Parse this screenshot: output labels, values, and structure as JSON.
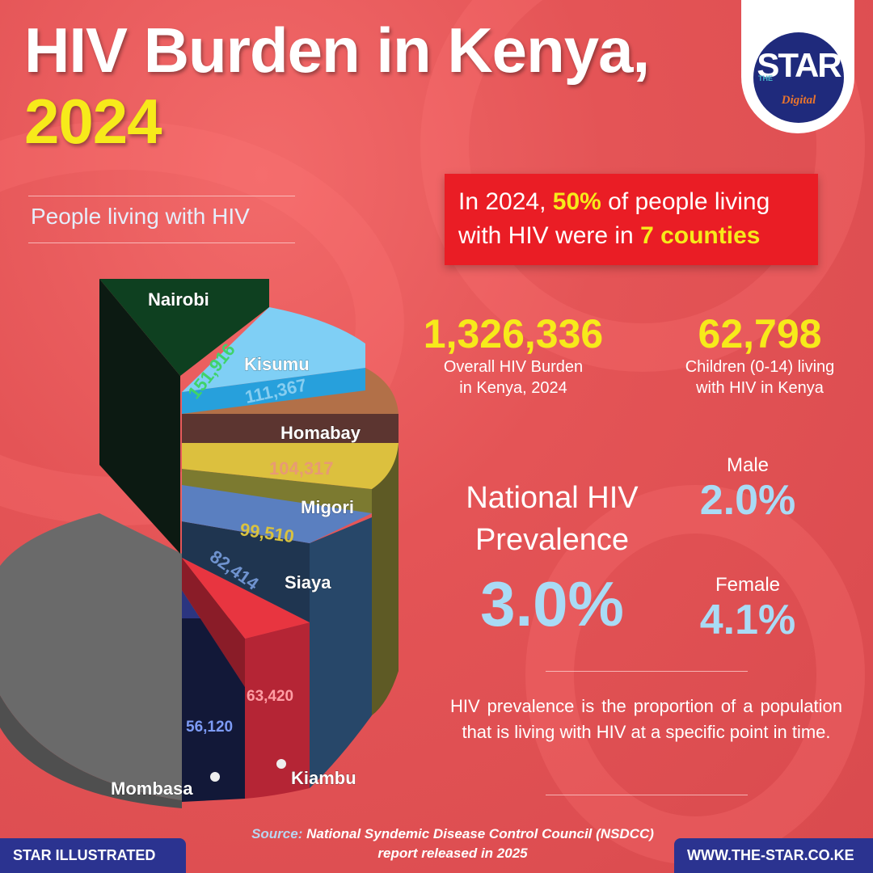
{
  "header": {
    "title_line1": "HIV Burden in Kenya,",
    "title_line2": "2024"
  },
  "logo": {
    "the": "THE",
    "star": "STAR",
    "digital": "Digital"
  },
  "subtitle": "People living with HIV",
  "callout": {
    "pre": "In 2024, ",
    "pct": "50%",
    "mid": " of people living with HIV were in ",
    "counties": "7 counties"
  },
  "stats": [
    {
      "value": "1,326,336",
      "label_line1": "Overall HIV Burden",
      "label_line2": "in Kenya, 2024"
    },
    {
      "value": "62,798",
      "label_line1": "Children (0-14) living",
      "label_line2": "with HIV in Kenya"
    }
  ],
  "prevalence": {
    "label_line1": "National HIV",
    "label_line2": "Prevalence",
    "value": "3.0%",
    "male_label": "Male",
    "male_value": "2.0%",
    "female_label": "Female",
    "female_value": "4.1%"
  },
  "definition": "HIV prevalence is the proportion of a population that is living with HIV at a specific point in time.",
  "source": {
    "label": "Source:",
    "text": "National Syndemic Disease Control Council (NSDCC) report released in 2025"
  },
  "footer": {
    "left": "STAR ILLUSTRATED",
    "right": "WWW.THE-STAR.CO.KE"
  },
  "chart_data": {
    "type": "pie",
    "style": "3d-exploded",
    "categories": [
      "Nairobi",
      "Kisumu",
      "Homabay",
      "Migori",
      "Siaya",
      "Kiambu",
      "Mombasa"
    ],
    "values": [
      151916,
      111367,
      104317,
      99510,
      82414,
      63420,
      56120
    ],
    "value_labels": [
      "151,916",
      "111,367",
      "104,317",
      "99,510",
      "82,414",
      "63,420",
      "56,120"
    ],
    "colors": [
      "#0e4020",
      "#7fcff5",
      "#b27048",
      "#dcc03e",
      "#5a7fc0",
      "#e83540",
      "#2b3580"
    ],
    "rest_color": "#6a6a6a"
  }
}
